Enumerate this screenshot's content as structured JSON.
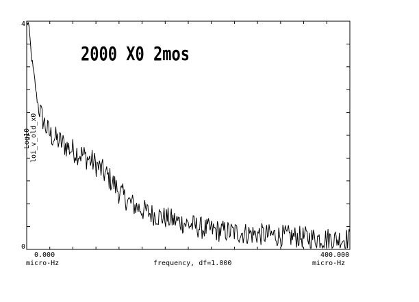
{
  "chart_data": {
    "type": "line",
    "title": "2000 X0 2mos",
    "ylabel_line1": "Log10",
    "ylabel_line2": "loi_v_old_x0",
    "xlabel": "frequency, df=1.000",
    "x_tick_left": "0.000",
    "x_tick_right": "400.000",
    "x_unit_left": "micro-Hz",
    "x_unit_right": "micro-Hz",
    "y_tick_top": "4",
    "y_tick_bottom": "0",
    "xlim": [
      0,
      400
    ],
    "ylim": [
      0,
      4
    ],
    "grid": false,
    "series": [
      {
        "values_x": [
          0,
          2,
          4,
          6,
          8,
          10,
          12,
          14,
          16,
          18,
          20,
          25,
          30,
          35,
          40,
          45,
          50,
          55,
          60,
          65,
          70,
          75,
          80,
          85,
          90,
          95,
          100,
          105,
          110,
          115,
          120,
          125,
          130,
          135,
          140,
          145,
          150,
          155,
          160,
          165,
          170,
          175,
          180,
          185,
          190,
          195,
          200,
          205,
          210,
          215,
          220,
          225,
          230,
          235,
          240,
          245,
          250,
          255,
          260,
          265,
          270,
          275,
          280,
          285,
          290,
          295,
          300,
          305,
          310,
          315,
          320,
          325,
          330,
          335,
          340,
          345,
          350,
          355,
          360,
          365,
          370,
          375,
          380,
          385,
          390,
          395,
          400
        ],
        "values_y": [
          4.0,
          3.95,
          3.7,
          3.35,
          3.15,
          2.95,
          2.7,
          2.55,
          2.45,
          2.35,
          2.28,
          2.1,
          2.0,
          1.95,
          1.9,
          1.85,
          1.8,
          1.75,
          1.72,
          1.68,
          1.65,
          1.6,
          1.55,
          1.5,
          1.42,
          1.35,
          1.28,
          1.2,
          1.1,
          1.0,
          0.92,
          0.85,
          0.8,
          0.75,
          0.72,
          0.68,
          0.65,
          0.62,
          0.6,
          0.58,
          0.56,
          0.54,
          0.52,
          0.5,
          0.48,
          0.46,
          0.44,
          0.42,
          0.4,
          0.38,
          0.36,
          0.35,
          0.34,
          0.33,
          0.32,
          0.32,
          0.31,
          0.3,
          0.3,
          0.29,
          0.28,
          0.28,
          0.27,
          0.27,
          0.26,
          0.26,
          0.25,
          0.25,
          0.24,
          0.24,
          0.23,
          0.23,
          0.22,
          0.22,
          0.21,
          0.21,
          0.2,
          0.2,
          0.2,
          0.19,
          0.19,
          0.19,
          0.18,
          0.18,
          0.18,
          0.18,
          0.18
        ]
      }
    ]
  }
}
